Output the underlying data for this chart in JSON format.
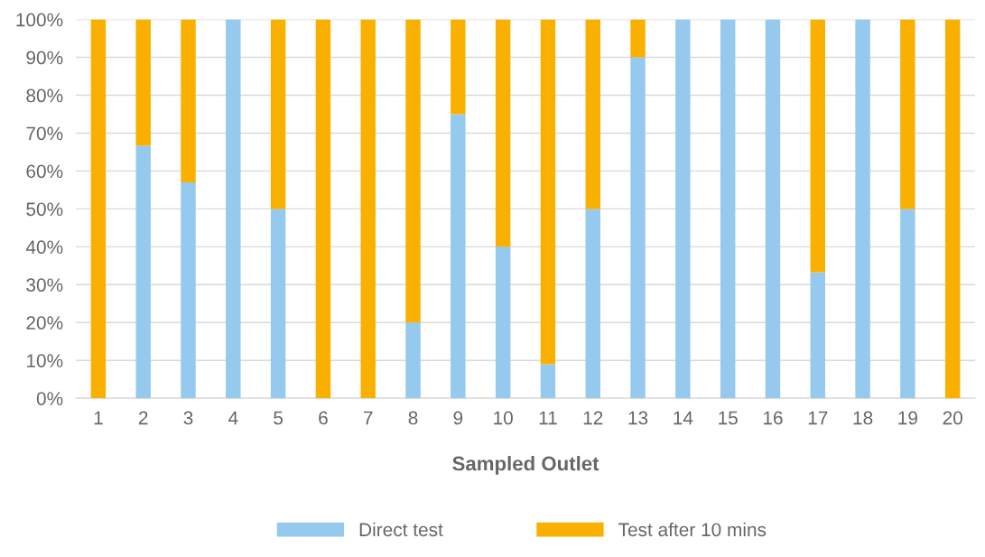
{
  "chart_data": {
    "type": "bar",
    "stacked": true,
    "xlabel": "Sampled Outlet",
    "categories": [
      "1",
      "2",
      "3",
      "4",
      "5",
      "6",
      "7",
      "8",
      "9",
      "10",
      "11",
      "12",
      "13",
      "14",
      "15",
      "16",
      "17",
      "18",
      "19",
      "20"
    ],
    "series": [
      {
        "name": "Direct test",
        "color": "#95c9ee",
        "values": [
          0,
          66.7,
          57,
          100,
          50,
          0,
          0,
          20,
          75,
          40,
          9,
          50,
          90,
          100,
          100,
          100,
          33.3,
          100,
          50,
          0
        ]
      },
      {
        "name": "Test after 10 mins",
        "color": "#f9b000",
        "values": [
          100,
          33.3,
          43,
          0,
          50,
          100,
          100,
          80,
          25,
          60,
          91,
          50,
          10,
          0,
          0,
          0,
          66.7,
          0,
          50,
          100
        ]
      }
    ],
    "ylim": [
      0,
      100
    ],
    "yticks": [
      {
        "value": 0,
        "label": "0%"
      },
      {
        "value": 10,
        "label": "10%"
      },
      {
        "value": 20,
        "label": "20%"
      },
      {
        "value": 30,
        "label": "30%"
      },
      {
        "value": 40,
        "label": "40%"
      },
      {
        "value": 50,
        "label": "50%"
      },
      {
        "value": 60,
        "label": "60%"
      },
      {
        "value": 70,
        "label": "70%"
      },
      {
        "value": 80,
        "label": "80%"
      },
      {
        "value": 90,
        "label": "90%"
      },
      {
        "value": 100,
        "label": "100%"
      }
    ],
    "grid": "y",
    "legend": "bottom"
  }
}
